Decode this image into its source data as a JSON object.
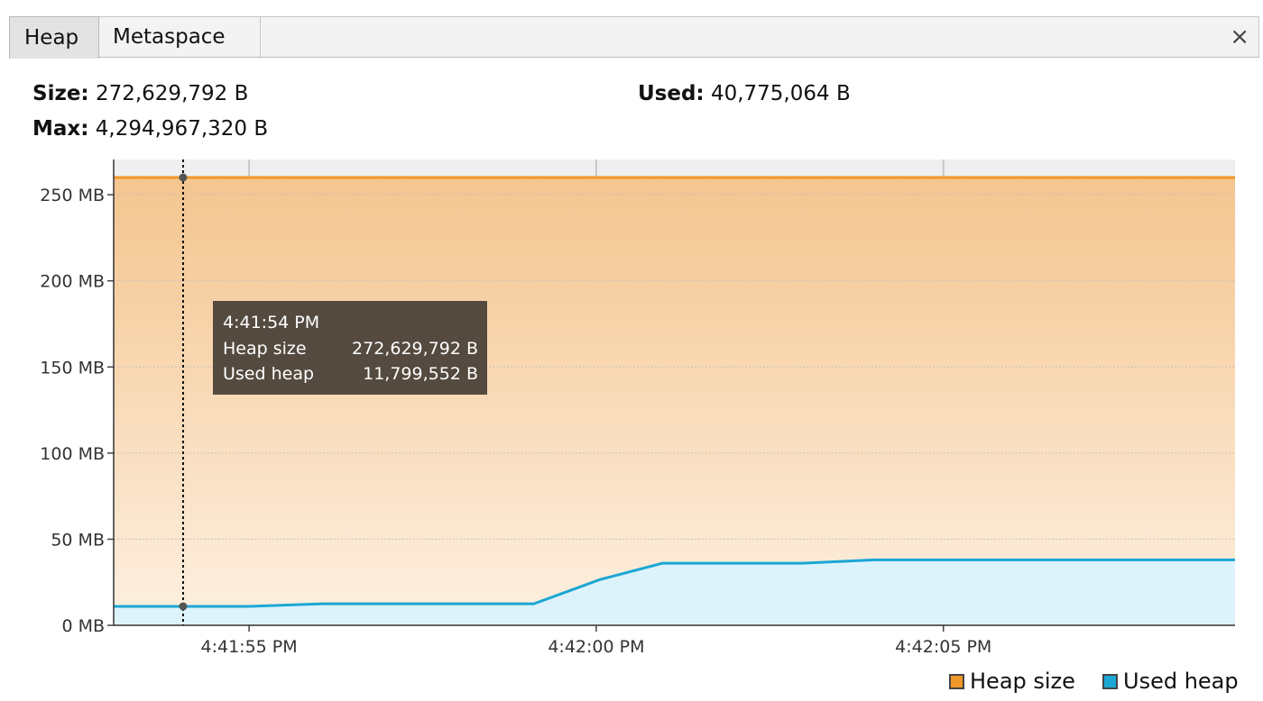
{
  "tabs": [
    {
      "label": "Heap",
      "active": true
    },
    {
      "label": "Metaspace",
      "active": false
    }
  ],
  "close_glyph": "×",
  "stats": {
    "size_label": "Size:",
    "size_value": "272,629,792 B",
    "max_label": "Max:",
    "max_value": "4,294,967,320 B",
    "used_label": "Used:",
    "used_value": "40,775,064 B"
  },
  "tooltip": {
    "time": "4:41:54 PM",
    "rows": [
      {
        "label": "Heap size",
        "value": "272,629,792 B"
      },
      {
        "label": "Used heap",
        "value": "11,799,552 B"
      }
    ]
  },
  "legend": [
    {
      "label": "Heap size",
      "color": "#F0962A"
    },
    {
      "label": "Used heap",
      "color": "#1BA7D4"
    }
  ],
  "chart_data": {
    "type": "area",
    "x_tick_labels": [
      "4:41:55 PM",
      "4:42:00 PM",
      "4:42:05 PM"
    ],
    "y_tick_labels": [
      "0 MB",
      "50 MB",
      "100 MB",
      "150 MB",
      "200 MB",
      "250 MB"
    ],
    "ylim": [
      0,
      260
    ],
    "xlim": [
      -1.95,
      14.2
    ],
    "x_unit": "seconds after 4:41:55 PM",
    "series": [
      {
        "name": "Heap size",
        "color": "#F0962A",
        "points": [
          [
            -1.95,
            260
          ],
          [
            14.2,
            260
          ]
        ]
      },
      {
        "name": "Used heap",
        "color": "#1BA7D4",
        "points": [
          [
            -1.95,
            11
          ],
          [
            0,
            11
          ],
          [
            1.05,
            12.5
          ],
          [
            4.1,
            12.5
          ],
          [
            5.05,
            26.5
          ],
          [
            5.95,
            36
          ],
          [
            7.95,
            36
          ],
          [
            9.0,
            38
          ],
          [
            14.2,
            38
          ]
        ]
      }
    ],
    "crosshair_x": -0.95,
    "grid": true
  }
}
